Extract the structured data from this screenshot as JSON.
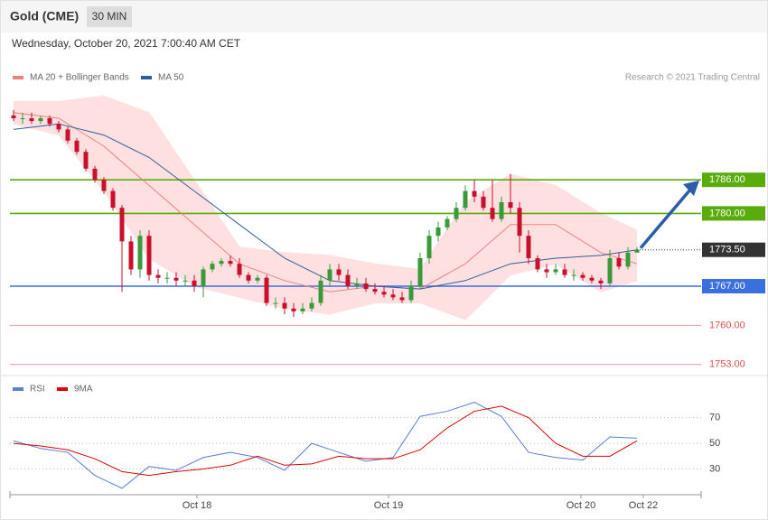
{
  "chart_data": [
    {
      "type": "candlestick",
      "title": "Gold (CME)",
      "subtitle": "30 MIN",
      "date": "Wednesday, October 20, 2021 7:00:40 AM CET",
      "credit": "Research © 2021 Trading Central",
      "up_color": "#3a9a3a",
      "down_color": "#c8102e",
      "open": [
        1797.5,
        1797,
        1797,
        1796.5,
        1797,
        1796,
        1795,
        1793,
        1791,
        1788,
        1786,
        1784,
        1781,
        1775,
        1770,
        1776,
        1769,
        1768.5,
        1768.5,
        1768,
        1768,
        1767,
        1770,
        1771,
        1771.5,
        1771,
        1769,
        1768,
        1768.5,
        1764,
        1764,
        1763,
        1762.5,
        1763,
        1764,
        1768,
        1770,
        1769,
        1767,
        1767.5,
        1766.5,
        1766,
        1765.5,
        1765,
        1764.5,
        1767,
        1772,
        1776,
        1777.5,
        1779,
        1781,
        1784,
        1783,
        1781,
        1779,
        1782,
        1781,
        1776,
        1772,
        1770,
        1769.5,
        1770,
        1769,
        1769,
        1768.5,
        1768,
        1767.5,
        1772,
        1770.5,
        1773
      ],
      "high": [
        1798.5,
        1798,
        1798,
        1797.5,
        1797.5,
        1796.5,
        1795.5,
        1793.5,
        1791.5,
        1788.5,
        1786.5,
        1784.5,
        1781.5,
        1776,
        1777,
        1777,
        1770,
        1769.5,
        1769.5,
        1769,
        1769,
        1770.5,
        1771.5,
        1772,
        1772.5,
        1772,
        1769.5,
        1769,
        1769,
        1765,
        1765,
        1764,
        1764,
        1765,
        1769,
        1771,
        1771,
        1770,
        1768.5,
        1768.5,
        1767.5,
        1767,
        1766.5,
        1766,
        1768,
        1773,
        1777,
        1778.5,
        1779.5,
        1782,
        1785,
        1786,
        1784,
        1786,
        1783,
        1787,
        1782,
        1777,
        1772.5,
        1771,
        1771,
        1771,
        1770,
        1769.5,
        1769,
        1768.5,
        1773.5,
        1773,
        1774,
        1774
      ],
      "low": [
        1796.5,
        1796,
        1796,
        1796,
        1795.5,
        1794.5,
        1792.5,
        1790.5,
        1787.5,
        1785.5,
        1783.5,
        1780.5,
        1766,
        1769,
        1768.5,
        1768,
        1767.5,
        1767.5,
        1767,
        1767,
        1766,
        1765,
        1769.5,
        1770.5,
        1770.5,
        1768.5,
        1767.5,
        1767.5,
        1763.5,
        1763,
        1762,
        1761.5,
        1762,
        1762.5,
        1763.5,
        1767,
        1768,
        1766.5,
        1766.5,
        1766,
        1765.5,
        1765,
        1764.5,
        1764,
        1764,
        1766.5,
        1771,
        1775,
        1777,
        1778.5,
        1780.5,
        1782,
        1780.5,
        1778.5,
        1778.5,
        1780,
        1773,
        1771,
        1769.5,
        1768.5,
        1769,
        1768.5,
        1768,
        1768,
        1767.5,
        1766.5,
        1767,
        1770,
        1770,
        1773
      ],
      "close": [
        1797,
        1797,
        1796.5,
        1797,
        1796,
        1795,
        1793,
        1791,
        1788,
        1786,
        1784,
        1781,
        1775,
        1770,
        1776,
        1769,
        1768.5,
        1768.5,
        1768,
        1768,
        1767,
        1770,
        1771,
        1771.5,
        1771,
        1769,
        1768,
        1768.5,
        1764,
        1764,
        1763,
        1762.5,
        1763,
        1764,
        1768,
        1770,
        1769,
        1767,
        1767.5,
        1766.5,
        1766,
        1765.5,
        1765,
        1764.5,
        1767,
        1772,
        1776,
        1777.5,
        1779,
        1781,
        1784,
        1783,
        1781,
        1779,
        1782,
        1781,
        1776,
        1772,
        1770,
        1769.5,
        1770,
        1769,
        1769,
        1768.5,
        1768,
        1767.5,
        1772,
        1770.5,
        1773,
        1773.5
      ],
      "overlays": [
        {
          "name": "MA 20 + Bollinger Bands",
          "color": "#f08080",
          "band_color": "#ffe0e0",
          "x": [
            0,
            5,
            10,
            15,
            20,
            25,
            30,
            35,
            40,
            45,
            50,
            55,
            60,
            65,
            69
          ],
          "values": [
            1798,
            1797,
            1792,
            1785,
            1778,
            1771,
            1768,
            1766,
            1767,
            1766.5,
            1771,
            1778,
            1778,
            1773,
            1771
          ],
          "upper": [
            1800,
            1800,
            1801,
            1798,
            1786,
            1774,
            1773,
            1772.5,
            1771,
            1770,
            1782,
            1787,
            1785,
            1780,
            1777
          ],
          "lower": [
            1796,
            1794,
            1784,
            1772,
            1767,
            1765,
            1763,
            1762,
            1764,
            1764,
            1761,
            1769,
            1771,
            1766,
            1768
          ]
        },
        {
          "name": "MA 50",
          "color": "#2e5c9e",
          "x": [
            0,
            5,
            10,
            15,
            20,
            25,
            30,
            35,
            40,
            45,
            50,
            55,
            60,
            65,
            69
          ],
          "values": [
            1795,
            1796,
            1794,
            1790,
            1784,
            1778,
            1772,
            1768,
            1767,
            1766.5,
            1768,
            1771,
            1772,
            1772.5,
            1773.5
          ]
        }
      ],
      "levels": [
        {
          "value": 1786,
          "label": "1786.00",
          "color": "#5aab0c",
          "box": true
        },
        {
          "value": 1780,
          "label": "1780.00",
          "color": "#5aab0c",
          "box": true
        },
        {
          "value": 1767,
          "label": "1767.00",
          "color": "#3a6fe0",
          "box": true
        },
        {
          "value": 1760,
          "label": "1760.00",
          "color": "#e05050",
          "box": false
        },
        {
          "value": 1753,
          "label": "1753.00",
          "color": "#e05050",
          "box": false
        }
      ],
      "last": {
        "value": 1773.5,
        "label": "1773.50",
        "color": "#333333"
      },
      "xlim": [
        -0.4,
        76.1
      ],
      "ylim": [
        1752,
        1802
      ]
    },
    {
      "type": "line",
      "x": [
        0,
        3,
        6,
        9,
        12,
        15,
        18,
        21,
        24,
        27,
        30,
        33,
        36,
        39,
        42,
        45,
        48,
        51,
        54,
        57,
        60,
        63,
        66,
        69
      ],
      "series": [
        {
          "name": "RSI",
          "color": "#5b7fd6",
          "values": [
            52,
            46,
            43,
            25,
            15,
            32,
            29,
            39,
            43,
            39,
            29,
            50,
            43,
            36,
            39,
            71,
            75,
            82,
            71,
            43,
            39,
            37,
            55,
            54
          ]
        },
        {
          "name": "9MA",
          "color": "#e00000",
          "values": [
            50,
            48,
            45,
            38,
            28,
            25,
            28,
            30,
            33,
            40,
            33,
            34,
            40,
            38,
            38,
            45,
            62,
            75,
            79,
            70,
            50,
            40,
            40,
            52
          ]
        }
      ],
      "xticks": [
        {
          "value": 20.3,
          "label": "Oct 18"
        },
        {
          "value": 41.5,
          "label": "Oct 19"
        },
        {
          "value": 62.8,
          "label": "Oct 20"
        },
        {
          "value": 69.7,
          "label": "Oct 22"
        }
      ],
      "yticks": [
        30,
        50,
        70
      ],
      "xlim": [
        -0.4,
        76.1
      ],
      "ylim": [
        10,
        100
      ]
    }
  ]
}
